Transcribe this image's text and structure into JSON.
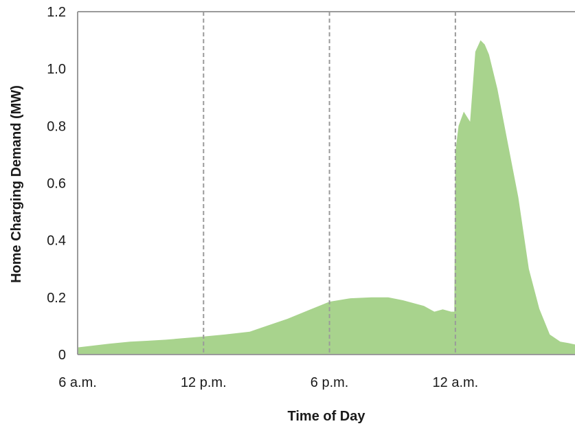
{
  "chart_data": {
    "type": "area",
    "title": "",
    "xlabel": "Time of Day",
    "ylabel": "Home Charging Demand (MW)",
    "x_unit": "hours since 6 a.m.",
    "xlim": [
      0,
      23.7
    ],
    "ylim": [
      0,
      1.2
    ],
    "xticks": [
      {
        "x": 0,
        "label": "6 a.m."
      },
      {
        "x": 6,
        "label": "12 p.m."
      },
      {
        "x": 12,
        "label": "6 p.m."
      },
      {
        "x": 18,
        "label": "12 a.m."
      }
    ],
    "yticks": [
      {
        "y": 0,
        "label": "0"
      },
      {
        "y": 0.2,
        "label": "0.2"
      },
      {
        "y": 0.4,
        "label": "0.4"
      },
      {
        "y": 0.6,
        "label": "0.6"
      },
      {
        "y": 0.8,
        "label": "0.8"
      },
      {
        "y": 1.0,
        "label": "1.0"
      },
      {
        "y": 1.2,
        "label": "1.2"
      }
    ],
    "vlines": [
      6,
      12,
      18
    ],
    "grid": false,
    "colors": {
      "fill": "#a8d38d",
      "axis": "#9a9a9a",
      "vline": "#9a9a9a"
    },
    "series": [
      {
        "x": [
          0,
          0.6,
          1.5,
          2.5,
          3.3,
          4.2,
          5.0,
          6.0,
          7.0,
          8.2,
          9.0,
          10.0,
          11.0,
          12.0,
          13.0,
          14.0,
          14.8,
          15.5,
          16.0,
          16.5,
          17.0,
          17.4,
          17.8,
          17.95,
          18.0,
          18.15,
          18.4,
          18.7,
          18.95,
          19.2,
          19.4,
          19.6,
          20.0,
          20.5,
          21.0,
          21.5,
          22.0,
          22.5,
          23.0,
          23.4,
          23.7
        ],
        "y": [
          0.025,
          0.03,
          0.038,
          0.045,
          0.048,
          0.052,
          0.057,
          0.063,
          0.07,
          0.08,
          0.1,
          0.125,
          0.155,
          0.185,
          0.197,
          0.2,
          0.2,
          0.19,
          0.18,
          0.17,
          0.15,
          0.158,
          0.15,
          0.15,
          0.71,
          0.8,
          0.85,
          0.815,
          1.06,
          1.1,
          1.085,
          1.05,
          0.93,
          0.74,
          0.55,
          0.3,
          0.16,
          0.07,
          0.045,
          0.04,
          0.035
        ]
      }
    ]
  }
}
